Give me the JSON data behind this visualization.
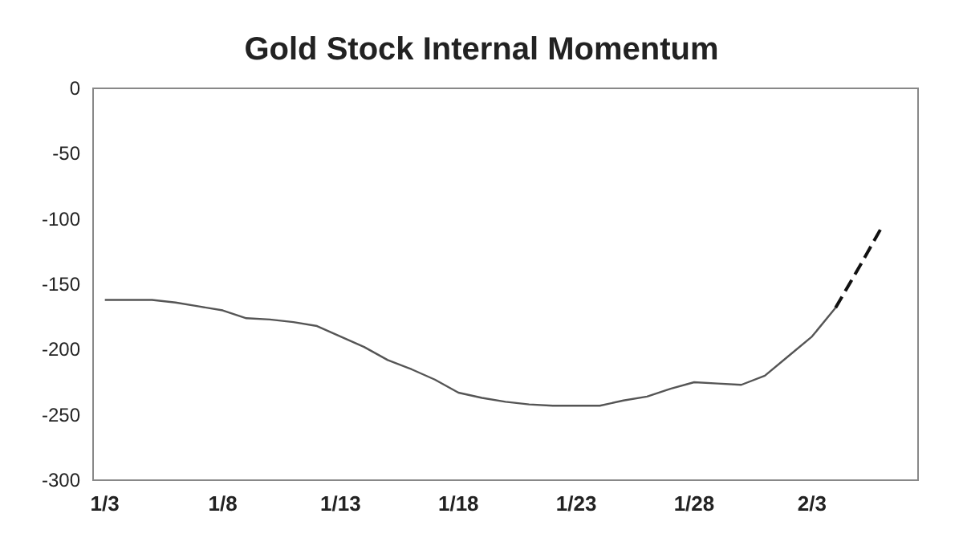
{
  "chart_data": {
    "type": "line",
    "title": "Gold Stock Internal Momentum",
    "categories": [
      "1/3",
      null,
      null,
      null,
      null,
      "1/8",
      null,
      null,
      null,
      null,
      "1/13",
      null,
      null,
      null,
      null,
      "1/18",
      null,
      null,
      null,
      null,
      "1/23",
      null,
      null,
      null,
      null,
      "1/28",
      null,
      null,
      null,
      null,
      "2/3",
      null,
      null,
      null,
      null
    ],
    "series": [
      {
        "color": "#555555",
        "line_style": "solid",
        "values": [
          -162,
          -162,
          -162,
          -164,
          -167,
          -170,
          -176,
          -177,
          -179,
          -182,
          -190,
          -198,
          -208,
          -215,
          -223,
          -233,
          -237,
          -240,
          -242,
          -243,
          -243,
          -243,
          -239,
          -236,
          -230,
          -225,
          -226,
          -227,
          -220,
          -205,
          -190,
          -168,
          null,
          null,
          null
        ]
      },
      {
        "color": "#111111",
        "line_style": "dashed",
        "values": [
          null,
          null,
          null,
          null,
          null,
          null,
          null,
          null,
          null,
          null,
          null,
          null,
          null,
          null,
          null,
          null,
          null,
          null,
          null,
          null,
          null,
          null,
          null,
          null,
          null,
          null,
          null,
          null,
          null,
          null,
          null,
          -168,
          -137,
          -105,
          null
        ]
      }
    ],
    "ylim": [
      -300,
      0
    ],
    "yticks": [
      0,
      -50,
      -100,
      -150,
      -200,
      -250,
      -300
    ],
    "grid": false,
    "marker": "none"
  }
}
